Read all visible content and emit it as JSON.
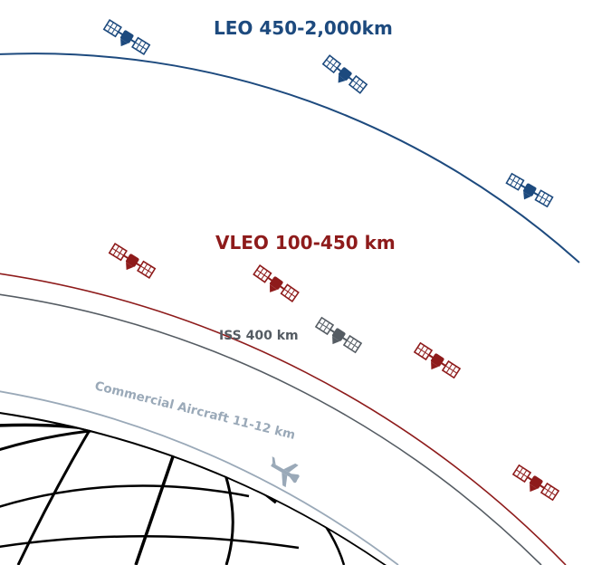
{
  "labels": {
    "leo": "LEO 450-2,000km",
    "vleo": "VLEO 100-450 km",
    "iss": "ISS 400 km",
    "aircraft": "Commercial Aircraft 11-12 km"
  },
  "colors": {
    "leo": "#1d4a7e",
    "vleo": "#8e1b1b",
    "iss": "#555c63",
    "aircraft": "#9aa9b8",
    "earth_grid": "#000000"
  },
  "icons": {
    "satellite": "satellite-icon",
    "iss": "space-station-icon",
    "aircraft": "airplane-icon",
    "earth": "earth-globe-icon"
  }
}
